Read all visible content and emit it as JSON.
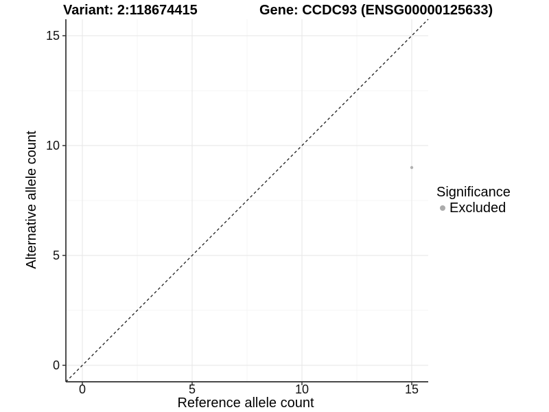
{
  "chart_data": {
    "type": "scatter",
    "title_left": "Variant: 2:118674415",
    "title_right": "Gene: CCDC93 (ENSG00000125633)",
    "xlabel": "Reference allele count",
    "ylabel": "Alternative allele count",
    "xlim": [
      -0.75,
      15.75
    ],
    "ylim": [
      -0.75,
      15.75
    ],
    "x_ticks": [
      0,
      5,
      10,
      15
    ],
    "y_ticks": [
      0,
      5,
      10,
      15
    ],
    "x_minor_ticks": [
      2.5,
      7.5,
      12.5
    ],
    "y_minor_ticks": [
      2.5,
      7.5,
      12.5
    ],
    "grid": true,
    "reference_line": {
      "kind": "identity",
      "style": "dashed"
    },
    "series": [
      {
        "name": "Excluded",
        "points": [
          {
            "x": 15,
            "y": 9
          }
        ]
      }
    ],
    "legend": {
      "title": "Significance",
      "position": "right",
      "entries": [
        {
          "label": "Excluded",
          "color": "#ababab",
          "marker": "circle"
        }
      ]
    },
    "colors": {
      "point": "#b2b2b2",
      "legend_key": "#a9a9a9",
      "axis_line": "#2e2e2e",
      "tick_mark": "#333333",
      "grid_major": "#e9e9e9",
      "grid_minor": "#f4f4f4",
      "dashed_line": "#1a1a1a",
      "tick_label": "#111111"
    }
  }
}
